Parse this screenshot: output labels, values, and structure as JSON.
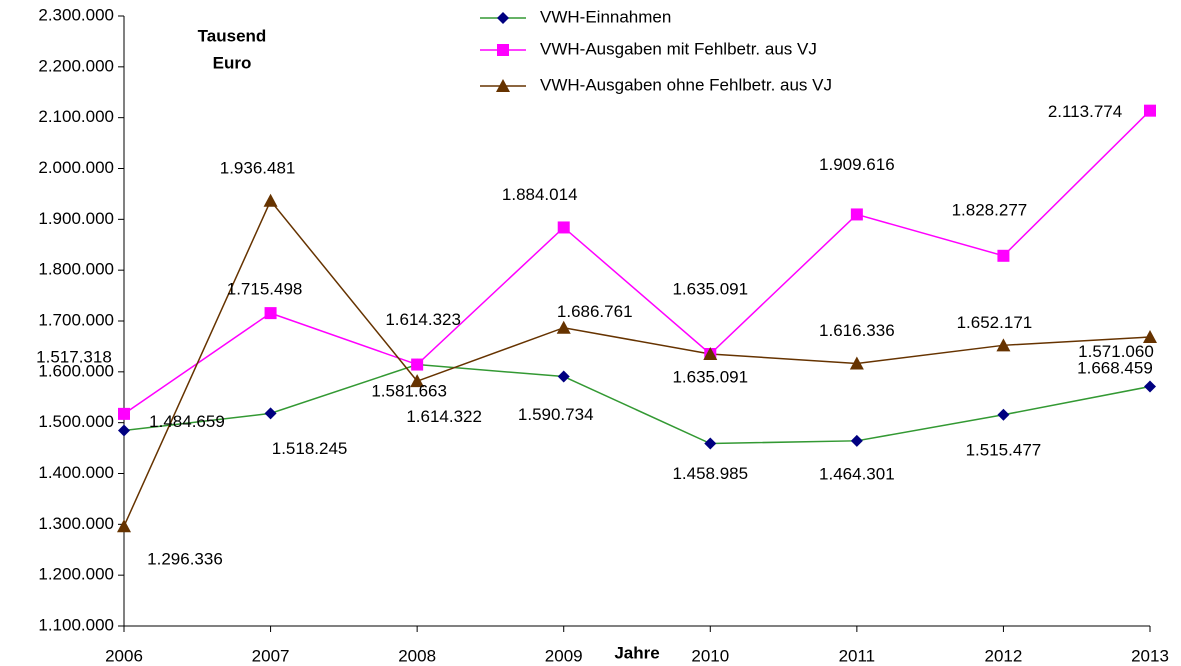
{
  "chart_data": {
    "type": "line",
    "x_label": "Jahre",
    "y_label_lines": [
      "Tausend",
      "Euro"
    ],
    "categories": [
      "2006",
      "2007",
      "2008",
      "2009",
      "2010",
      "2011",
      "2012",
      "2013"
    ],
    "ylim": [
      1100000,
      2300000
    ],
    "yticks": [
      {
        "value": 1100000,
        "label": "1.100.000"
      },
      {
        "value": 1200000,
        "label": "1.200.000"
      },
      {
        "value": 1300000,
        "label": "1.300.000"
      },
      {
        "value": 1400000,
        "label": "1.400.000"
      },
      {
        "value": 1500000,
        "label": "1.500.000"
      },
      {
        "value": 1600000,
        "label": "1.600.000"
      },
      {
        "value": 1700000,
        "label": "1.700.000"
      },
      {
        "value": 1800000,
        "label": "1.800.000"
      },
      {
        "value": 1900000,
        "label": "1.900.000"
      },
      {
        "value": 2000000,
        "label": "2.000.000"
      },
      {
        "value": 2100000,
        "label": "2.100.000"
      },
      {
        "value": 2200000,
        "label": "2.200.000"
      },
      {
        "value": 2300000,
        "label": "2.300.000"
      }
    ],
    "grid": false,
    "legend": "top",
    "series": [
      {
        "name": "VWH-Einnahmen",
        "color": "#339933",
        "marker": "diamond",
        "marker_color": "#000080",
        "values": [
          1484659,
          1518245,
          1614322,
          1590734,
          1458985,
          1464301,
          1515477,
          1571060
        ],
        "value_labels": [
          "1.484.659",
          "1.518.245",
          "1.614.322",
          "1.590.734",
          "1.458.985",
          "1.464.301",
          "1.515.477",
          "1.571.060"
        ]
      },
      {
        "name": "VWH-Ausgaben mit Fehlbetr. aus VJ",
        "color": "#ff00ff",
        "marker": "square",
        "marker_color": "#ff00ff",
        "values": [
          1517318,
          1715498,
          1614323,
          1884014,
          1635091,
          1909616,
          1828277,
          2113774
        ],
        "value_labels": [
          "1.517.318",
          "1.715.498",
          "1.614.323",
          "1.884.014",
          "1.635.091",
          "1.909.616",
          "1.828.277",
          "2.113.774"
        ]
      },
      {
        "name": "VWH-Ausgaben ohne Fehlbetr. aus VJ",
        "color": "#663300",
        "marker": "triangle",
        "marker_color": "#663300",
        "values": [
          1296336,
          1936481,
          1581663,
          1686761,
          1635091,
          1616336,
          1652171,
          1668459
        ],
        "value_labels": [
          "1.296.336",
          "1.936.481",
          "1.581.663",
          "1.686.761",
          "1.635.091",
          "1.616.336",
          "1.652.171",
          "1.668.459"
        ]
      }
    ]
  }
}
